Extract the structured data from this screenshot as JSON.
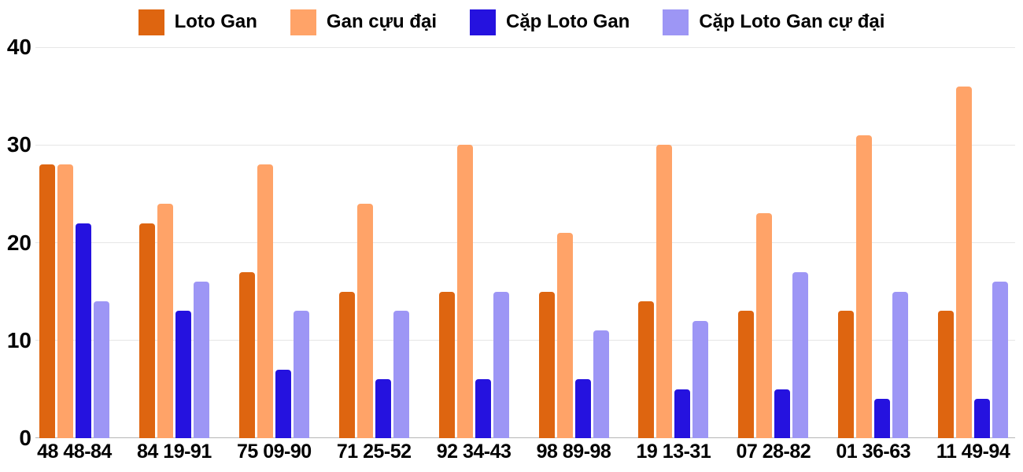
{
  "chart_data": {
    "type": "bar",
    "title": "",
    "xlabel": "",
    "ylabel": "",
    "ylim": [
      0,
      40
    ],
    "yticks": [
      0,
      10,
      20,
      30,
      40
    ],
    "grid": true,
    "legend_position": "top-center",
    "categories": [
      "48 48-84",
      "84 19-91",
      "75 09-90",
      "71 25-52",
      "92 34-43",
      "98 89-98",
      "19 13-31",
      "07 28-82",
      "01 36-63",
      "11 49-94"
    ],
    "series": [
      {
        "name": "Loto Gan",
        "color": "#DE6510",
        "values": [
          28,
          22,
          17,
          15,
          15,
          15,
          14,
          13,
          13,
          13
        ]
      },
      {
        "name": "Gan cựu đại",
        "color": "#FFA368",
        "values": [
          28,
          24,
          28,
          24,
          30,
          21,
          30,
          23,
          31,
          36
        ]
      },
      {
        "name": "Cặp Loto Gan",
        "color": "#2512DF",
        "values": [
          22,
          13,
          7,
          6,
          6,
          6,
          5,
          5,
          4,
          4
        ]
      },
      {
        "name": "Cặp Loto Gan cự đại",
        "color": "#9D96F5",
        "values": [
          14,
          16,
          13,
          13,
          15,
          11,
          12,
          17,
          15,
          16
        ]
      }
    ]
  },
  "colors": {
    "gridline": "#e6e6e6",
    "baseline": "#b5b5b5",
    "text": "#000000",
    "background": "#ffffff"
  }
}
